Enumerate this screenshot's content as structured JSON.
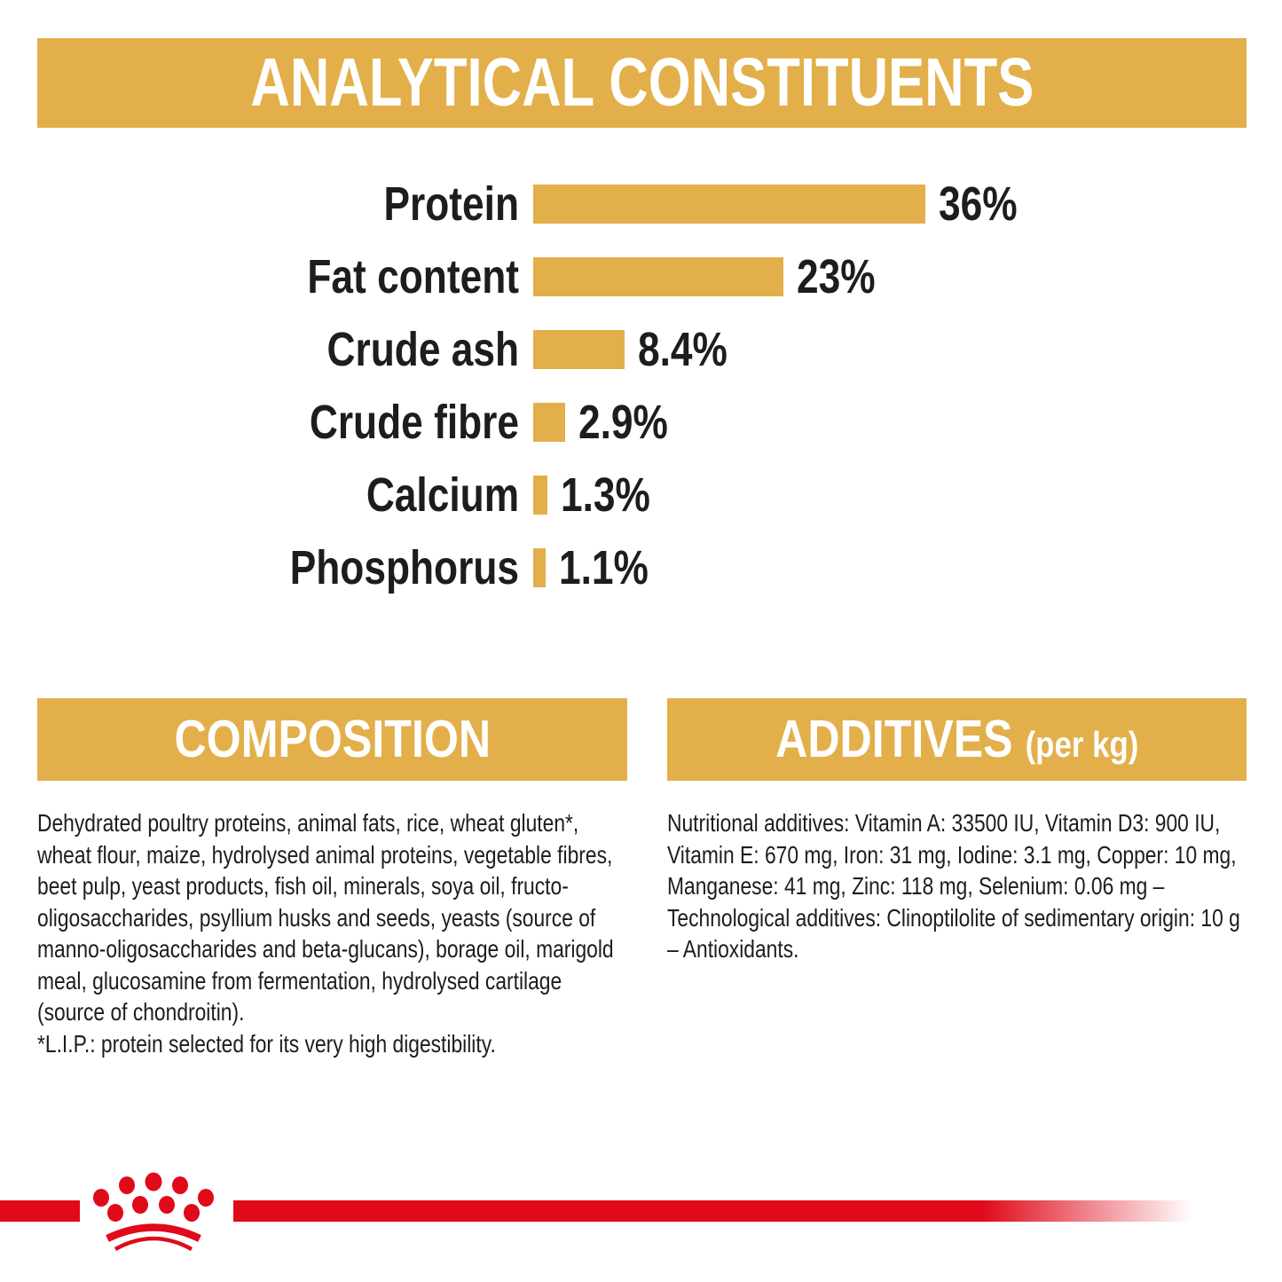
{
  "colors": {
    "gold": "#E2AF4A",
    "red": "#E00A1A",
    "text": "#1D1D1B"
  },
  "analytical": {
    "title": "ANALYTICAL CONSTITUENTS"
  },
  "chart_data": {
    "type": "bar",
    "orientation": "horizontal",
    "title": "ANALYTICAL CONSTITUENTS",
    "categories": [
      "Protein",
      "Fat content",
      "Crude ash",
      "Crude fibre",
      "Calcium",
      "Phosphorus"
    ],
    "values": [
      36,
      23,
      8.4,
      2.9,
      1.3,
      1.1
    ],
    "value_labels": [
      "36%",
      "23%",
      "8.4%",
      "2.9%",
      "1.3%",
      "1.1%"
    ],
    "unit": "%",
    "xlim": [
      0,
      36
    ],
    "bar_color": "#E2AF4A",
    "grid": false,
    "legend": false
  },
  "composition": {
    "title": "COMPOSITION",
    "body": "Dehydrated poultry proteins, animal fats, rice, wheat gluten*, wheat flour, maize, hydrolysed animal proteins, vegetable fibres, beet pulp, yeast products, fish oil, minerals, soya oil, fructo-oligosaccharides, psyllium husks and seeds, yeasts (source of manno-oligosaccharides and beta-glucans), borage oil, marigold meal, glucosamine from fermentation, hydrolysed cartilage (source of chondroitin).",
    "footnote": "*L.I.P.: protein selected for its very high digestibility."
  },
  "additives": {
    "title": "ADDITIVES",
    "suffix": "(per kg)",
    "body": "Nutritional additives: Vitamin A: 33500 IU, Vitamin D3: 900 IU, Vitamin E: 670 mg, Iron: 31 mg, Iodine: 3.1 mg, Copper: 10 mg, Manganese: 41 mg, Zinc: 118 mg, Selenium: 0.06 mg – Technological additives: Clinoptilolite of sedimentary origin: 10 g – Antioxidants."
  },
  "footer": {
    "logo": "royal-canin-crown-icon",
    "stripe_color": "#E00A1A"
  }
}
